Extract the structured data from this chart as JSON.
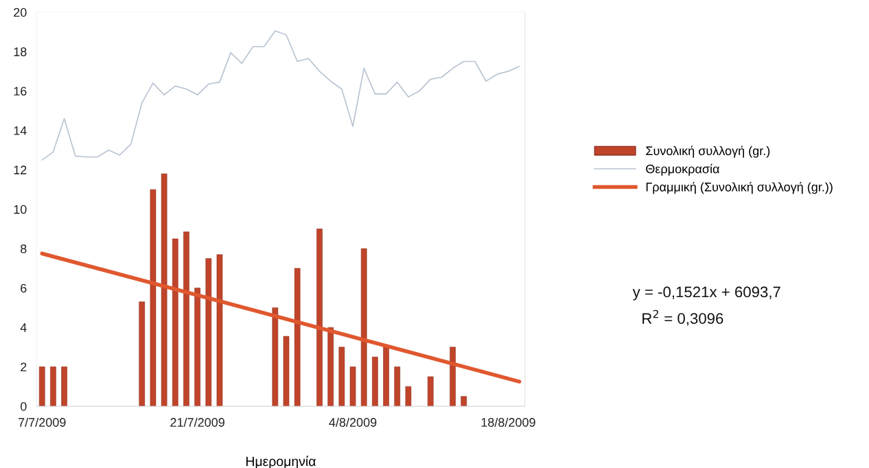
{
  "chart_data": {
    "type": "bar",
    "xlabel": "Ημερομηνία",
    "xlim": [
      "2009-07-06T12:00",
      "2009-08-19T12:00"
    ],
    "xticks": [
      {
        "value": "2009-07-07",
        "label": "7/7/2009"
      },
      {
        "value": "2009-07-21",
        "label": "21/7/2009"
      },
      {
        "value": "2009-08-04",
        "label": "4/8/2009"
      },
      {
        "value": "2009-08-18",
        "label": "18/8/2009"
      }
    ],
    "ylim": [
      0,
      20
    ],
    "yticks": [
      0,
      2,
      4,
      6,
      8,
      10,
      12,
      14,
      16,
      18,
      20
    ],
    "grid": false,
    "legend": "right",
    "series": [
      {
        "name": "Συνολική συλλογή (gr.)",
        "color": "#c0442a",
        "x": [
          "2009-07-07",
          "2009-07-08",
          "2009-07-09",
          "2009-07-16",
          "2009-07-17",
          "2009-07-18",
          "2009-07-19",
          "2009-07-20",
          "2009-07-21",
          "2009-07-22",
          "2009-07-23",
          "2009-07-28",
          "2009-07-29",
          "2009-07-30",
          "2009-08-01",
          "2009-08-02",
          "2009-08-03",
          "2009-08-04",
          "2009-08-05",
          "2009-08-06",
          "2009-08-07",
          "2009-08-08",
          "2009-08-09",
          "2009-08-11",
          "2009-08-13",
          "2009-08-14"
        ],
        "values": [
          2,
          2,
          2,
          5.3,
          11,
          11.8,
          8.5,
          8.85,
          6,
          7.5,
          7.7,
          5,
          3.55,
          7,
          9,
          4,
          3,
          2,
          8,
          2.5,
          3,
          2,
          1,
          1.5,
          3,
          0.5
        ]
      },
      {
        "name": "Θερμοκρασία",
        "type": "line",
        "color": "#b8c4d2",
        "x": [
          "2009-07-07",
          "2009-07-08",
          "2009-07-09",
          "2009-07-10",
          "2009-07-11",
          "2009-07-12",
          "2009-07-13",
          "2009-07-14",
          "2009-07-15",
          "2009-07-16",
          "2009-07-17",
          "2009-07-18",
          "2009-07-19",
          "2009-07-20",
          "2009-07-21",
          "2009-07-22",
          "2009-07-23",
          "2009-07-24",
          "2009-07-25",
          "2009-07-26",
          "2009-07-27",
          "2009-07-28",
          "2009-07-29",
          "2009-07-30",
          "2009-07-31",
          "2009-08-01",
          "2009-08-02",
          "2009-08-03",
          "2009-08-04",
          "2009-08-05",
          "2009-08-06",
          "2009-08-07",
          "2009-08-08",
          "2009-08-09",
          "2009-08-10",
          "2009-08-11",
          "2009-08-12",
          "2009-08-13",
          "2009-08-14",
          "2009-08-15",
          "2009-08-16",
          "2009-08-17",
          "2009-08-18",
          "2009-08-19"
        ],
        "values": [
          12.5,
          12.9,
          14.6,
          12.7,
          12.65,
          12.65,
          13.0,
          12.75,
          13.3,
          15.4,
          16.4,
          15.8,
          16.25,
          16.1,
          15.8,
          16.35,
          16.45,
          17.95,
          17.4,
          18.25,
          18.25,
          19.05,
          18.85,
          17.5,
          17.65,
          17.0,
          16.5,
          16.1,
          14.2,
          17.15,
          15.85,
          15.85,
          16.45,
          15.7,
          16.0,
          16.6,
          16.7,
          17.15,
          17.5,
          17.5,
          16.5,
          16.85,
          17.0,
          17.25
        ]
      },
      {
        "name": "Γραμμική (Συνολική συλλογή (gr.))",
        "type": "line",
        "color": "#e0582f",
        "x": [
          "2009-07-07",
          "2009-08-19"
        ],
        "values": [
          7.75,
          1.25
        ]
      }
    ],
    "annotations": [
      "y = -0,1521x + 6093,7",
      "R$^{2}$ = 0,3096"
    ]
  }
}
